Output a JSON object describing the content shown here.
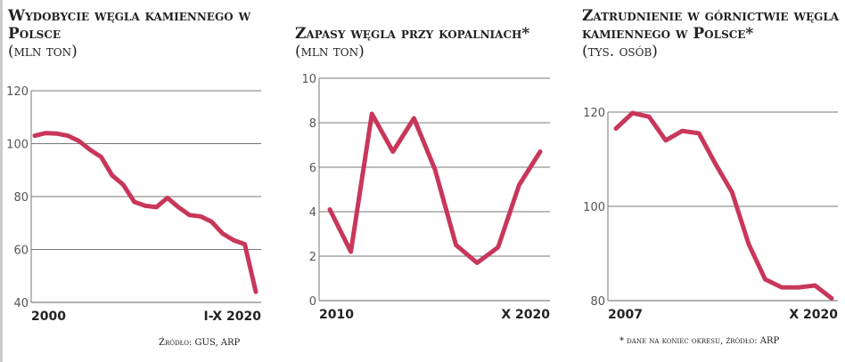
{
  "color": "#c8375a",
  "chart_data": [
    {
      "type": "line",
      "title": "Wydobycie węgla kamiennego w Polsce",
      "unit": "(mln ton)",
      "x": [
        2000,
        2001,
        2002,
        2003,
        2004,
        2005,
        2006,
        2007,
        2008,
        2009,
        2010,
        2011,
        2012,
        2013,
        2014,
        2015,
        2016,
        2017,
        2018,
        2019,
        2020
      ],
      "values": [
        103,
        104,
        103.8,
        103,
        101,
        97.7,
        95,
        88,
        84.5,
        78,
        76.5,
        76,
        79.5,
        76,
        73,
        72.5,
        70.5,
        66,
        63.5,
        62,
        44
      ],
      "ylim": [
        40,
        120
      ],
      "yticks": [
        "40",
        "60",
        "80",
        "100",
        "120"
      ],
      "xlabels": [
        "2000",
        "I-X 2020"
      ],
      "source": "Źródło: GUS, ARP"
    },
    {
      "type": "line",
      "title": "Zapasy węgla przy kopalniach*",
      "unit": "(mln ton)",
      "x": [
        2010,
        2011,
        2012,
        2013,
        2014,
        2015,
        2016,
        2017,
        2018,
        2019,
        2020
      ],
      "values": [
        4.1,
        2.2,
        8.4,
        6.7,
        8.2,
        5.9,
        2.5,
        1.7,
        2.4,
        5.2,
        6.7
      ],
      "ylim": [
        0,
        10
      ],
      "yticks": [
        "0",
        "2",
        "4",
        "6",
        "8",
        "10"
      ],
      "xlabels": [
        "2010",
        "X 2020"
      ]
    },
    {
      "type": "line",
      "title": "Zatrudnienie w górnictwie węgla kamiennego w Polsce*",
      "unit": "(tys. osób)",
      "x": [
        2007,
        2008,
        2009,
        2010,
        2011,
        2012,
        2013,
        2014,
        2015,
        2016,
        2017,
        2018,
        2019,
        2020
      ],
      "values": [
        116.5,
        119.8,
        119,
        114,
        116,
        115.5,
        109,
        103,
        92,
        84.5,
        82.8,
        82.8,
        83.2,
        80.5
      ],
      "ylim": [
        80,
        120
      ],
      "yticks": [
        "80",
        "100",
        "120"
      ],
      "xlabels": [
        "2007",
        "X 2020"
      ],
      "source": "* dane na koniec okresu, źródło: ARP"
    }
  ]
}
